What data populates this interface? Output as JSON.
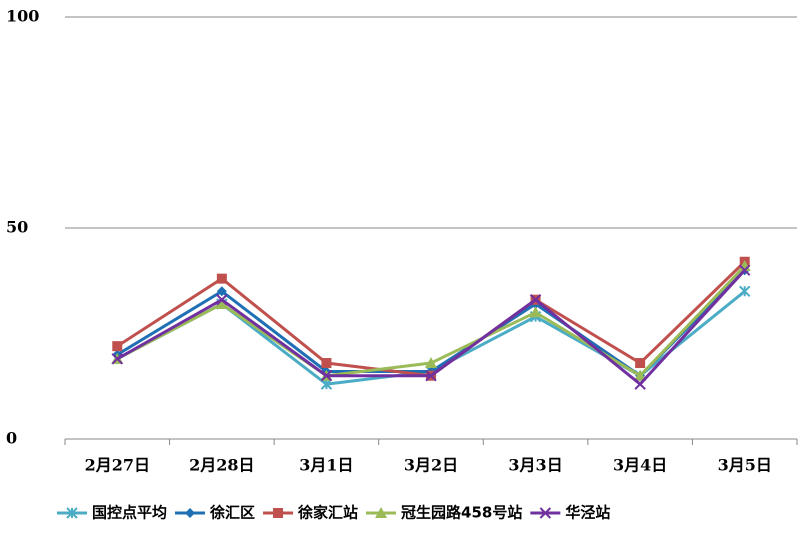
{
  "chart_data": {
    "type": "line",
    "categories": [
      "2月27日",
      "2月28日",
      "3月1日",
      "3月2日",
      "3月3日",
      "3月4日",
      "3月5日"
    ],
    "series": [
      {
        "name": "国控点平均",
        "color": "#4bacc6",
        "marker": "asterisk",
        "values": [
          19,
          32,
          13,
          16,
          29,
          15,
          35
        ]
      },
      {
        "name": "徐汇区",
        "color": "#1f6fb5",
        "marker": "diamond",
        "values": [
          20,
          35,
          16,
          16,
          32,
          15,
          40
        ]
      },
      {
        "name": "徐家汇站",
        "color": "#c0504d",
        "marker": "square",
        "values": [
          22,
          38,
          18,
          15,
          33,
          18,
          42
        ]
      },
      {
        "name": "冠生园路458号站",
        "color": "#9bbb59",
        "marker": "triangle",
        "values": [
          19,
          32,
          15,
          18,
          30,
          15,
          41
        ]
      },
      {
        "name": "华泾站",
        "color": "#7030a0",
        "marker": "x",
        "values": [
          19,
          33,
          15,
          15,
          33,
          13,
          40
        ]
      }
    ],
    "ylim": [
      0,
      100
    ],
    "yticks": [
      0,
      50,
      100
    ],
    "grid": true,
    "legend": "bottom"
  }
}
